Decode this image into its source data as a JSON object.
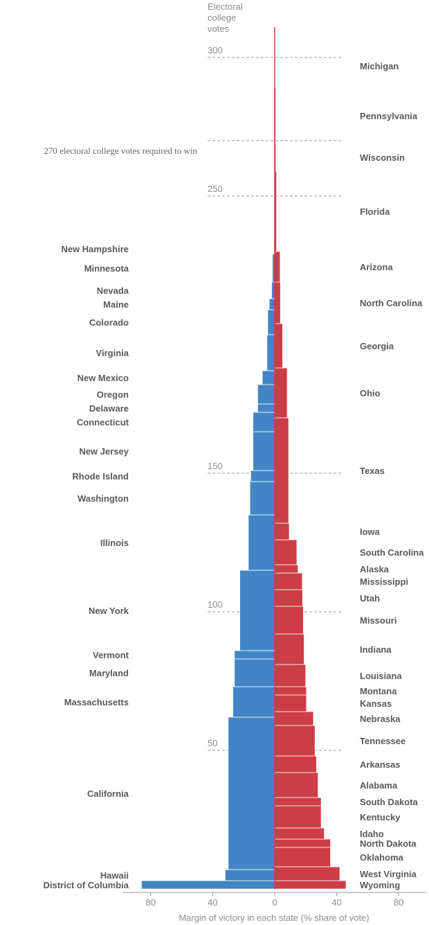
{
  "chart_data": {
    "type": "bar",
    "orientation": "stacked-horizontal-bars",
    "title": "",
    "xlabel": "Margin of victory in each state (% share of vote)",
    "ylabel": "Electoral college votes",
    "ylabel_lines": [
      "Electoral",
      "college",
      "votes"
    ],
    "xlim": [
      -90,
      90
    ],
    "ylim": [
      0,
      310
    ],
    "x_ticks": [
      -80,
      -40,
      0,
      40,
      80
    ],
    "x_tick_labels": [
      "80",
      "40",
      "0",
      "40",
      "80"
    ],
    "y_ticks": [
      50,
      100,
      150,
      250,
      300
    ],
    "y_tick_labels": [
      "50",
      "100",
      "150",
      "250",
      "300"
    ],
    "win_threshold": 270,
    "win_label": "270 electoral college votes required to win",
    "colors": {
      "democrat": "#4285c4",
      "republican": "#cc3d45",
      "median_line": "#cc3d45"
    },
    "median_line_top": 310,
    "democrat_states": [
      {
        "name": "District of Columbia",
        "votes": 3,
        "margin": 86
      },
      {
        "name": "Hawaii",
        "votes": 4,
        "margin": 32
      },
      {
        "name": "California",
        "votes": 55,
        "margin": 30
      },
      {
        "name": "Massachusetts",
        "votes": 11,
        "margin": 27
      },
      {
        "name": "Maryland",
        "votes": 10,
        "margin": 26
      },
      {
        "name": "Vermont",
        "votes": 3,
        "margin": 26
      },
      {
        "name": "New York",
        "votes": 29,
        "margin": 22.5
      },
      {
        "name": "Illinois",
        "votes": 20,
        "margin": 17
      },
      {
        "name": "Washington",
        "votes": 12,
        "margin": 16
      },
      {
        "name": "Rhode Island",
        "votes": 4,
        "margin": 15.5
      },
      {
        "name": "New Jersey",
        "votes": 14,
        "margin": 14
      },
      {
        "name": "Connecticut",
        "votes": 7,
        "margin": 14
      },
      {
        "name": "Delaware",
        "votes": 3,
        "margin": 11
      },
      {
        "name": "Oregon",
        "votes": 7,
        "margin": 11
      },
      {
        "name": "New Mexico",
        "votes": 5,
        "margin": 8
      },
      {
        "name": "Virginia",
        "votes": 13,
        "margin": 5
      },
      {
        "name": "Colorado",
        "votes": 9,
        "margin": 4.5
      },
      {
        "name": "Maine",
        "votes": 4,
        "margin": 3.5
      },
      {
        "name": "Nevada",
        "votes": 6,
        "margin": 2
      },
      {
        "name": "Minnesota",
        "votes": 10,
        "margin": 1.5
      },
      {
        "name": "New Hampshire",
        "votes": 4,
        "margin": 0.5
      }
    ],
    "republican_states": [
      {
        "name": "Wyoming",
        "votes": 3,
        "margin": 46
      },
      {
        "name": "West Virginia",
        "votes": 5,
        "margin": 42
      },
      {
        "name": "Oklahoma",
        "votes": 7,
        "margin": 36
      },
      {
        "name": "North Dakota",
        "votes": 3,
        "margin": 36
      },
      {
        "name": "Idaho",
        "votes": 4,
        "margin": 32
      },
      {
        "name": "Kentucky",
        "votes": 8,
        "margin": 30
      },
      {
        "name": "South Dakota",
        "votes": 3,
        "margin": 30
      },
      {
        "name": "Alabama",
        "votes": 9,
        "margin": 28
      },
      {
        "name": "Arkansas",
        "votes": 6,
        "margin": 27
      },
      {
        "name": "Tennessee",
        "votes": 11,
        "margin": 26
      },
      {
        "name": "Nebraska",
        "votes": 5,
        "margin": 25
      },
      {
        "name": "Kansas",
        "votes": 6,
        "margin": 20.5
      },
      {
        "name": "Montana",
        "votes": 3,
        "margin": 20.5
      },
      {
        "name": "Louisiana",
        "votes": 8,
        "margin": 20
      },
      {
        "name": "Indiana",
        "votes": 11,
        "margin": 19
      },
      {
        "name": "Missouri",
        "votes": 10,
        "margin": 18.5
      },
      {
        "name": "Utah",
        "votes": 6,
        "margin": 18
      },
      {
        "name": "Mississippi",
        "votes": 6,
        "margin": 17.8
      },
      {
        "name": "Alaska",
        "votes": 3,
        "margin": 15
      },
      {
        "name": "South Carolina",
        "votes": 9,
        "margin": 14.3
      },
      {
        "name": "Iowa",
        "votes": 6,
        "margin": 9.4
      },
      {
        "name": "Texas",
        "votes": 38,
        "margin": 9
      },
      {
        "name": "Ohio",
        "votes": 18,
        "margin": 8.1
      },
      {
        "name": "Georgia",
        "votes": 16,
        "margin": 5.1
      },
      {
        "name": "North Carolina",
        "votes": 15,
        "margin": 3.7
      },
      {
        "name": "Arizona",
        "votes": 11,
        "margin": 3.5
      },
      {
        "name": "Florida",
        "votes": 29,
        "margin": 1.2
      },
      {
        "name": "Wisconsin",
        "votes": 10,
        "margin": 0.8
      },
      {
        "name": "Pennsylvania",
        "votes": 20,
        "margin": 0.7
      },
      {
        "name": "Michigan",
        "votes": 16,
        "margin": 0.2
      }
    ]
  }
}
